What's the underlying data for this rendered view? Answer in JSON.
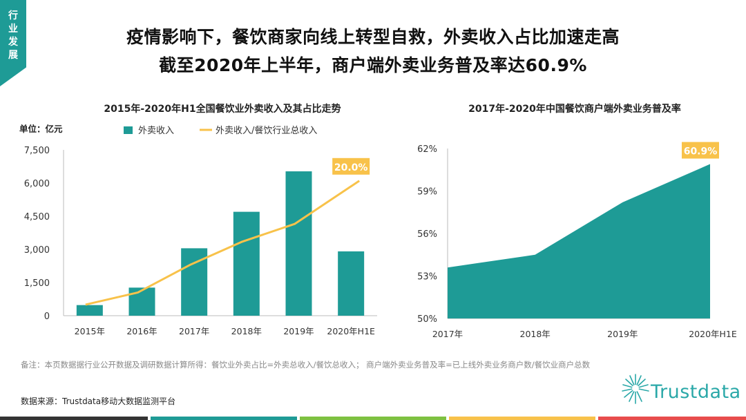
{
  "tag": {
    "text": "行业发展"
  },
  "title": {
    "line1": "疫情影响下，餐饮商家向线上转型自救，外卖收入占比加速走高",
    "line2": "截至2020年上半年，商户端外卖业务普及率达60.9%"
  },
  "colors": {
    "teal": "#1e9b96",
    "gold": "#f8c24a",
    "axis": "#bbbbbb",
    "footer": [
      "#333333",
      "#1e9b96",
      "#7ec141",
      "#f8c24a",
      "#e84d4d"
    ]
  },
  "chart_data": [
    {
      "type": "bar",
      "title": "2015年-2020年H1全国餐饮业外卖收入及其占比走势",
      "unit_label": "单位：亿元",
      "categories": [
        "2015年",
        "2016年",
        "2017年",
        "2018年",
        "2019年",
        "2020年H1E"
      ],
      "yticks": [
        "7,500",
        "6,000",
        "4,500",
        "3,000",
        "1,500",
        "0"
      ],
      "ylim": [
        0,
        7500
      ],
      "series": [
        {
          "name": "外卖收入",
          "kind": "bar",
          "values": [
            480,
            1270,
            3050,
            4700,
            6530,
            2910
          ]
        },
        {
          "name": "外卖收入/餐饮行业总收入",
          "kind": "line",
          "values": [
            500,
            1050,
            2300,
            3350,
            4150,
            6100
          ]
        }
      ],
      "annotation": {
        "text": "20.0%",
        "category_index": 5
      },
      "legend_position": "top"
    },
    {
      "type": "area",
      "title": "2017年-2020年中国餐饮商户端外卖业务普及率",
      "categories": [
        "2017年",
        "2018年",
        "2019年",
        "2020年H1E"
      ],
      "yticks": [
        "62%",
        "59%",
        "56%",
        "53%",
        "50%"
      ],
      "ylim": [
        50,
        62
      ],
      "values": [
        53.6,
        54.5,
        58.2,
        60.9
      ],
      "annotation": {
        "text": "60.9%",
        "category_index": 3
      }
    }
  ],
  "note": "备注：本页数据据行业公开数据及调研数据计算所得：餐饮业外卖占比=外卖总收入/餐饮总收入；  商户端外卖业务普及率=已上线外卖业务商户数/餐饮业商户总数",
  "source": "数据来源：Trustdata移动大数据监测平台",
  "logo": {
    "text": "Trustdata"
  }
}
